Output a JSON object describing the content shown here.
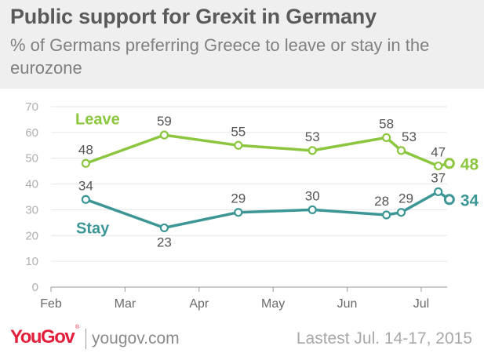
{
  "header": {
    "title": "Public support for Grexit in Germany",
    "subtitle": "% of Germans preferring Greece to leave or stay in the eurozone"
  },
  "footer": {
    "logo": "YouGov",
    "logo_mark": "®",
    "site": "yougov.com",
    "note": "Lastest Jul. 14-17, 2015"
  },
  "chart_data": {
    "type": "line",
    "title": "Public support for Grexit in Germany",
    "subtitle": "% of Germans preferring Greece to leave or stay in the eurozone",
    "xlabel": "",
    "ylabel": "",
    "x_ticks": [
      "Feb",
      "Mar",
      "Apr",
      "May",
      "Jun",
      "Jul"
    ],
    "x_range": [
      0,
      5.35
    ],
    "ylim": [
      0,
      70
    ],
    "y_ticks": [
      0,
      10,
      20,
      30,
      40,
      50,
      60,
      70
    ],
    "grid": true,
    "legend": "inline labels",
    "x": [
      0.47,
      1.53,
      2.53,
      3.53,
      4.53,
      4.73,
      5.23,
      5.38
    ],
    "series": [
      {
        "name": "Leave",
        "color": "#8cc63f",
        "values": [
          48,
          59,
          55,
          53,
          58,
          53,
          47,
          48
        ],
        "point_labels": [
          "48",
          "59",
          "55",
          "53",
          "58",
          "53",
          "47",
          ""
        ],
        "end_label": "48"
      },
      {
        "name": "Stay",
        "color": "#3d9696",
        "values": [
          34,
          23,
          29,
          30,
          28,
          29,
          37,
          34
        ],
        "point_labels": [
          "34",
          "23",
          "29",
          "30",
          "28",
          "29",
          "37",
          ""
        ],
        "end_label": "34"
      }
    ]
  }
}
